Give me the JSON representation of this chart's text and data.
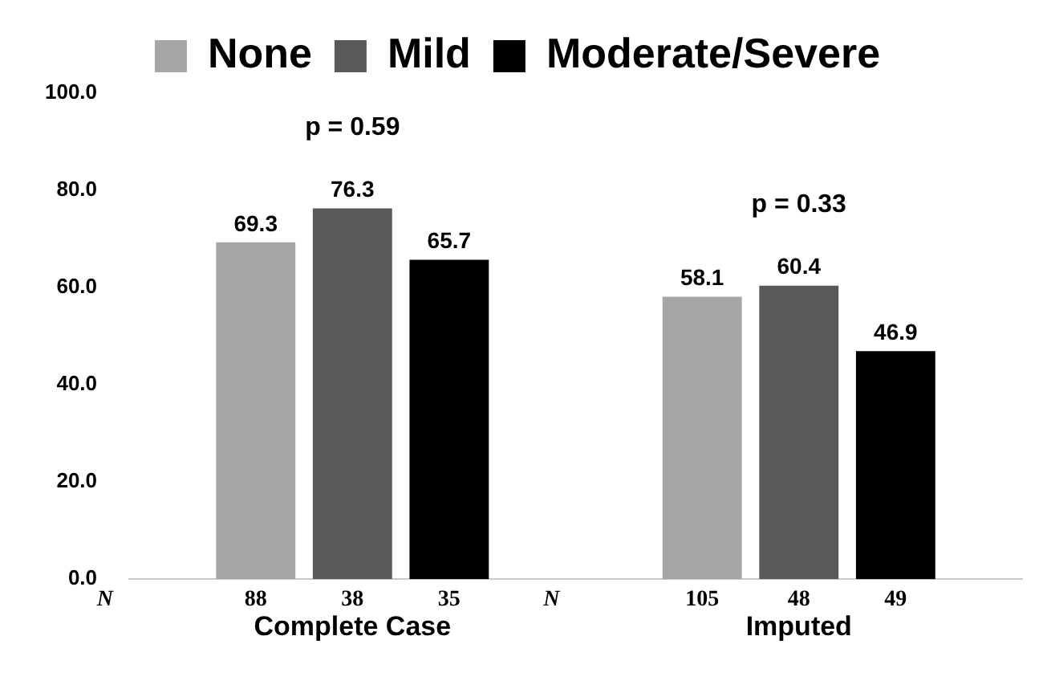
{
  "chart_data": {
    "type": "bar",
    "categories": [
      "Complete Case",
      "Imputed"
    ],
    "series": [
      {
        "name": "None",
        "color": "#a6a6a6",
        "values": [
          69.3,
          58.1
        ]
      },
      {
        "name": "Mild",
        "color": "#595959",
        "values": [
          76.3,
          60.4
        ]
      },
      {
        "name": "Moderate/Severe",
        "color": "#000000",
        "values": [
          65.7,
          46.9
        ]
      }
    ],
    "ylim": [
      0,
      100
    ],
    "yticks": [
      {
        "value": 0,
        "label": "0.0"
      },
      {
        "value": 20,
        "label": "20.0"
      },
      {
        "value": 40,
        "label": "40.0"
      },
      {
        "value": 60,
        "label": "60.0"
      },
      {
        "value": 80,
        "label": "80.0"
      },
      {
        "value": 100,
        "label": "100.0"
      }
    ],
    "data_labels": true,
    "legend": "top",
    "grid": false,
    "annotations": [
      "p = 0.59",
      "p = 0.33",
      "N",
      "88",
      "38",
      "35",
      "N",
      "105",
      "48",
      "49"
    ]
  }
}
